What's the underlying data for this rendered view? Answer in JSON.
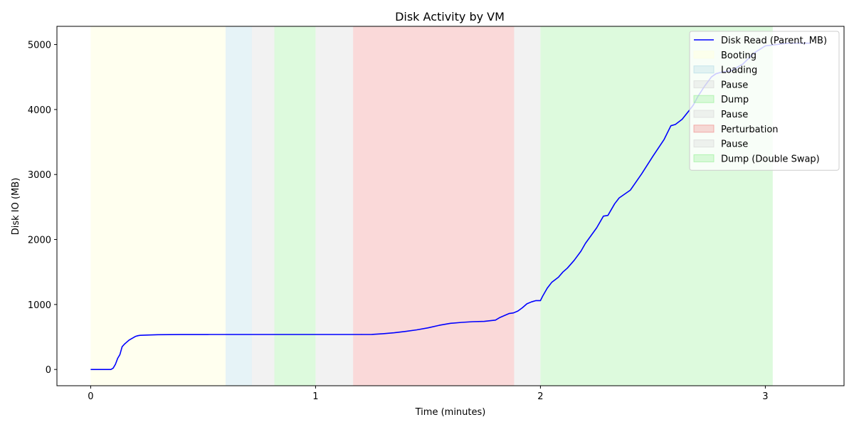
{
  "chart_data": {
    "type": "line",
    "title": "Disk Activity by VM",
    "xlabel": "Time (minutes)",
    "ylabel": "Disk IO (MB)",
    "xlim": [
      -0.15,
      3.35
    ],
    "ylim": [
      -250,
      5280
    ],
    "xticks": [
      0,
      1,
      2,
      3
    ],
    "yticks": [
      0,
      1000,
      2000,
      3000,
      4000,
      5000
    ],
    "legend_position": "top-right",
    "series": [
      {
        "name": "Disk Read (Parent, MB)",
        "color": "#0000ff",
        "x": [
          0,
          0.05,
          0.09,
          0.1,
          0.11,
          0.12,
          0.13,
          0.14,
          0.15,
          0.16,
          0.17,
          0.18,
          0.19,
          0.2,
          0.21,
          0.22,
          0.25,
          0.3,
          0.4,
          0.5,
          0.52,
          0.53,
          0.6,
          0.7,
          0.8,
          0.9,
          1.0,
          1.1,
          1.2,
          1.25,
          1.3,
          1.35,
          1.4,
          1.45,
          1.5,
          1.55,
          1.6,
          1.65,
          1.7,
          1.75,
          1.8,
          1.82,
          1.84,
          1.86,
          1.88,
          1.9,
          1.92,
          1.94,
          1.96,
          1.98,
          2.0,
          2.01,
          2.03,
          2.05,
          2.08,
          2.1,
          2.12,
          2.15,
          2.18,
          2.2,
          2.25,
          2.28,
          2.3,
          2.33,
          2.35,
          2.4,
          2.45,
          2.5,
          2.55,
          2.58,
          2.6,
          2.63,
          2.66,
          2.68,
          2.7,
          2.73,
          2.76,
          2.78,
          2.8,
          2.85,
          2.9,
          2.95,
          3.0,
          3.1,
          3.2
        ],
        "y": [
          0,
          0,
          0,
          20,
          80,
          170,
          230,
          350,
          390,
          420,
          450,
          470,
          490,
          510,
          520,
          525,
          530,
          535,
          537,
          537,
          537,
          538,
          538,
          538,
          538,
          538,
          538,
          538,
          538,
          540,
          550,
          565,
          585,
          610,
          640,
          680,
          710,
          725,
          735,
          740,
          760,
          800,
          830,
          860,
          870,
          900,
          950,
          1010,
          1040,
          1060,
          1060,
          1130,
          1250,
          1340,
          1420,
          1500,
          1560,
          1680,
          1820,
          1940,
          2180,
          2360,
          2370,
          2550,
          2640,
          2760,
          3010,
          3280,
          3540,
          3750,
          3770,
          3850,
          3980,
          4070,
          4200,
          4360,
          4500,
          4550,
          4570,
          4600,
          4700,
          4870,
          4980,
          5020,
          5020
        ]
      }
    ],
    "spans": [
      {
        "label": "Booting",
        "start": 0,
        "end": 0.6,
        "color": "#ffffe0",
        "opacity": 0.5
      },
      {
        "label": "Loading",
        "start": 0.6,
        "end": 0.717,
        "color": "#add8e6",
        "opacity": 0.3
      },
      {
        "label": "Pause",
        "start": 0.717,
        "end": 0.817,
        "color": "#d3d3d3",
        "opacity": 0.3
      },
      {
        "label": "Dump",
        "start": 0.817,
        "end": 1.0,
        "color": "#90ee90",
        "opacity": 0.3
      },
      {
        "label": "Pause",
        "start": 1.0,
        "end": 1.167,
        "color": "#d3d3d3",
        "opacity": 0.3
      },
      {
        "label": "Perturbation",
        "start": 1.167,
        "end": 1.883,
        "color": "#f08080",
        "opacity": 0.3
      },
      {
        "label": "Pause",
        "start": 1.883,
        "end": 2.0,
        "color": "#d3d3d3",
        "opacity": 0.3
      },
      {
        "label": "Dump (Double Swap)",
        "start": 2.0,
        "end": 3.033,
        "color": "#90ee90",
        "opacity": 0.3
      }
    ]
  }
}
